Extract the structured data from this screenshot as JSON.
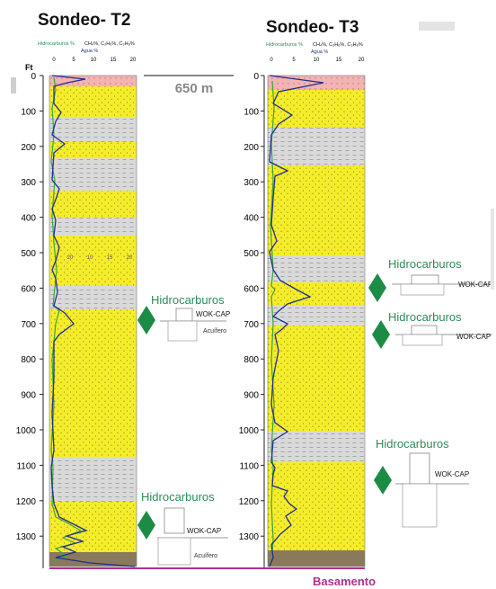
{
  "wells": [
    {
      "title": "Sondeo- T2",
      "legend": {
        "green": "Hidrocarburos %",
        "black": "CH₄%, C₂H₆%, C₃H₈%",
        "blue": "Agua %"
      },
      "axis_ticks": [
        "0",
        "5",
        "10",
        "15",
        "20"
      ],
      "inner_ticks": [
        "20",
        "10",
        "15",
        "20"
      ]
    },
    {
      "title": "Sondeo- T3",
      "legend": {
        "green": "Hidrocarburos %",
        "black": "CH₄%, C₂H₆%, C₃H₈%",
        "blue": "Agua %"
      },
      "axis_ticks": [
        "0",
        "5",
        "10",
        "15",
        "20"
      ]
    }
  ],
  "depth_unit": "Ft",
  "depth_ticks": [
    "0",
    "100",
    "200",
    "300",
    "400",
    "500",
    "600",
    "700",
    "800",
    "900",
    "1000",
    "1100",
    "1200",
    "1300"
  ],
  "distance_label": "650 m",
  "annotations": {
    "hidrocarburos": "Hidrocarburos",
    "wok_cap": "WOK-CAP",
    "acuifero": "Acuífero",
    "basamento": "Basamento"
  },
  "colors": {
    "sand": "#f5ec2a",
    "shale": "#d3d3d3",
    "basement": "#8a7a5c",
    "hydrocarbon_label": "#2e8b57",
    "diamond": "#1c8c45",
    "basamento_label": "#b0308c",
    "gas_curve": "#1f2f8f",
    "water_curve": "#3aa63a"
  }
}
